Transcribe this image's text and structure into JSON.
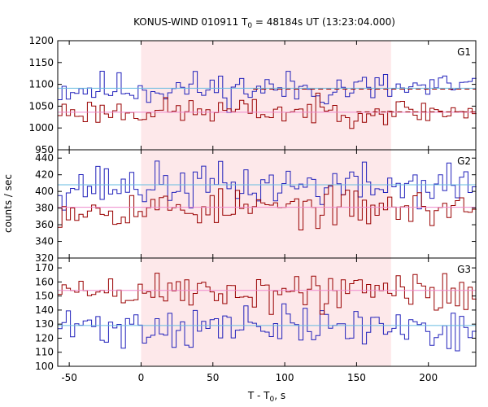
{
  "chart_data": {
    "type": "line",
    "title": {
      "prefix": "KONUS-WIND 010911 T",
      "sub": "0",
      "suffix": " = 48184s UT (13:23:04.000)"
    },
    "xlabel": {
      "prefix": "T - T",
      "sub": "0",
      "suffix": ", s"
    },
    "ylabel": "counts / sec",
    "xlim": [
      -58,
      233
    ],
    "xticks": [
      -50,
      0,
      50,
      100,
      150,
      200
    ],
    "highlight_region": {
      "x0": 0,
      "x1": 174,
      "color": "#fde8ea"
    },
    "step_colors": {
      "blue": "#2222bb",
      "red": "#990000",
      "blue_fit": "#66bbe0",
      "red_fit": "#ee88cc"
    },
    "panels": [
      {
        "label": "G1",
        "ylim": [
          950,
          1200
        ],
        "yticks": [
          950,
          1000,
          1050,
          1100,
          1150,
          1200
        ],
        "blue_series": {
          "mean": 1090,
          "amp": 20,
          "seed": 11,
          "fit": 1091,
          "dashed": {
            "x0": 78,
            "x1": 233,
            "value": 1089
          }
        },
        "red_series": {
          "mean": 1038,
          "amp": 15,
          "seed": 23,
          "fit": 1036,
          "dashed": {
            "x0": 150,
            "x1": 233,
            "value": 1037
          }
        },
        "bumps": [
          {
            "x0": 85,
            "x1": 105,
            "dy": 0,
            "dashed_from": 120,
            "dashed_to": 174,
            "dashed_value": 1037
          }
        ]
      },
      {
        "label": "G2",
        "ylim": [
          320,
          450
        ],
        "yticks": [
          320,
          340,
          360,
          380,
          400,
          420,
          440
        ],
        "blue_series": {
          "mean": 407,
          "amp": 13,
          "seed": 37,
          "fit": 408
        },
        "red_series": {
          "mean": 380,
          "amp": 11,
          "seed": 53,
          "fit": 381
        }
      },
      {
        "label": "G3",
        "ylim": [
          100,
          177
        ],
        "yticks": [
          100,
          110,
          120,
          130,
          140,
          150,
          160,
          170
        ],
        "blue_series": {
          "mean": 128,
          "amp": 7.5,
          "seed": 71,
          "fit": 129
        },
        "red_series": {
          "mean": 153,
          "amp": 7.5,
          "seed": 89,
          "fit": 154
        }
      }
    ]
  }
}
